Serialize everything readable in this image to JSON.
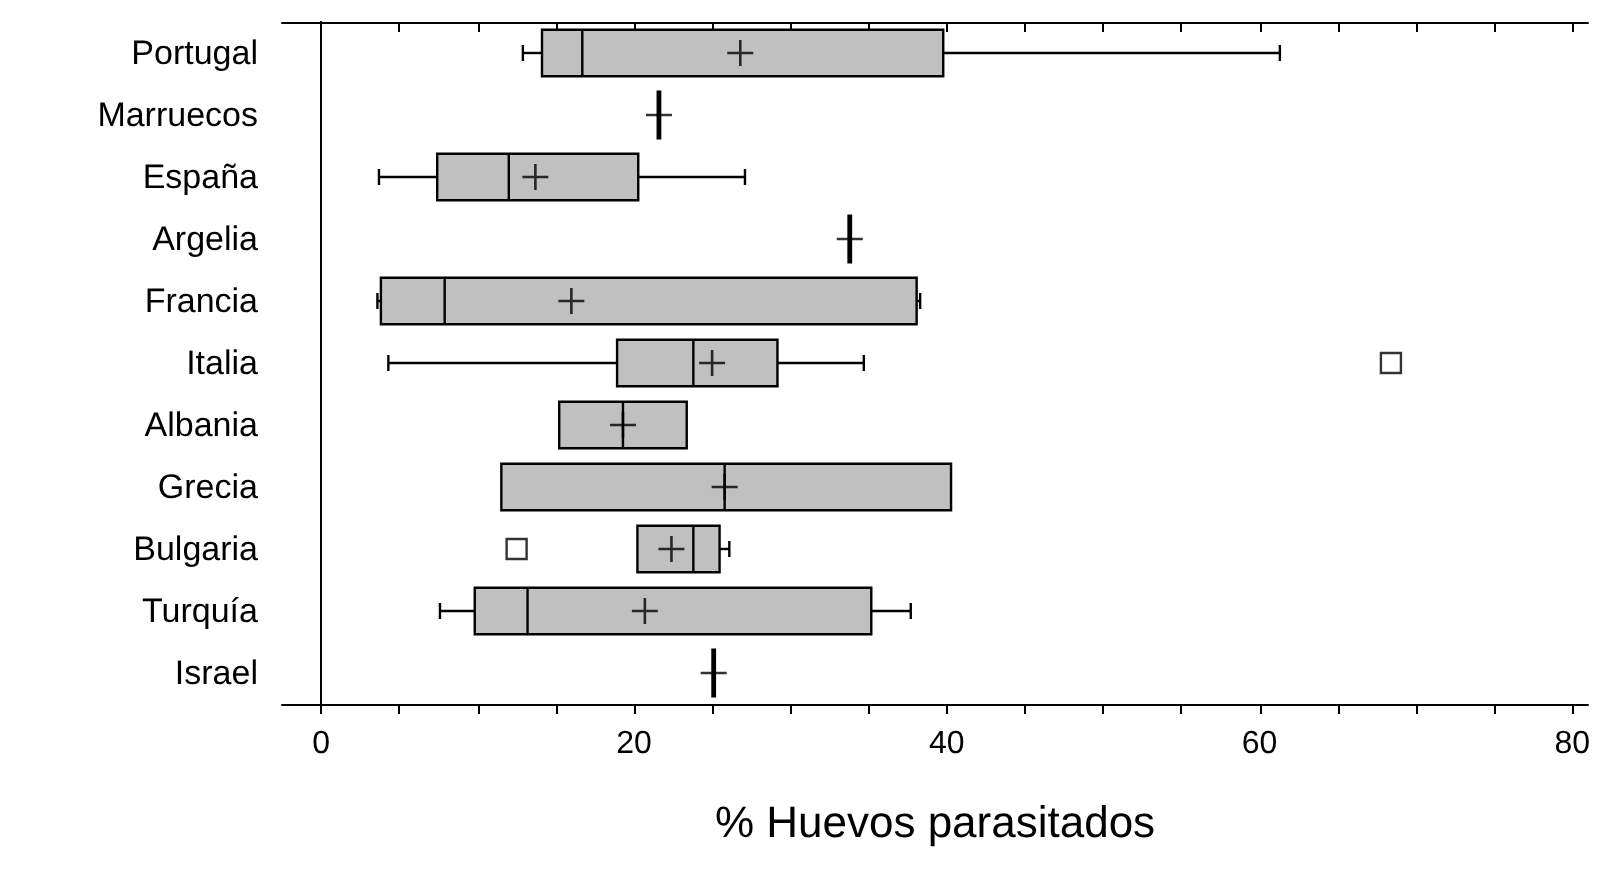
{
  "chart_data": {
    "type": "box",
    "orientation": "horizontal",
    "xlabel": "% Huevos parasitados",
    "color": "#c0c0c0",
    "grid": false,
    "categories": [
      "Portugal",
      "Marruecos",
      "España",
      "Argelia",
      "Francia",
      "Italia",
      "Albania",
      "Grecia",
      "Bulgaria",
      "Turquía",
      "Israel"
    ],
    "boxes": [
      {
        "low": 12.9,
        "q1": 14.2,
        "median": 16.7,
        "q3": 39.7,
        "high": 61.3,
        "mean": 26.8
      },
      {
        "low": 21.6,
        "q1": 21.6,
        "median": 21.6,
        "q3": 21.6,
        "high": 21.6,
        "mean": 21.6
      },
      {
        "low": 3.7,
        "q1": 7.5,
        "median": 12.0,
        "q3": 20.2,
        "high": 27.1,
        "mean": 13.7
      },
      {
        "low": 33.8,
        "q1": 33.8,
        "median": 33.8,
        "q3": 33.8,
        "high": 33.8,
        "mean": 33.8
      },
      {
        "low": 3.6,
        "q1": 3.9,
        "median": 7.9,
        "q3": 38.0,
        "high": 38.3,
        "mean": 16.0
      },
      {
        "low": 4.3,
        "q1": 19.0,
        "median": 23.8,
        "q3": 29.1,
        "high": 34.7,
        "mean": 25.0,
        "outliers": [
          68.4
        ]
      },
      {
        "low": 15.3,
        "q1": 15.3,
        "median": 19.3,
        "q3": 23.3,
        "high": 23.3,
        "mean": 19.3
      },
      {
        "low": 11.6,
        "q1": 11.6,
        "median": 25.8,
        "q3": 40.2,
        "high": 40.2,
        "mean": 25.8
      },
      {
        "low": 20.3,
        "q1": 20.3,
        "median": 23.8,
        "q3": 25.4,
        "high": 26.1,
        "mean": 22.4,
        "outliers": [
          12.5
        ]
      },
      {
        "low": 7.6,
        "q1": 9.9,
        "median": 13.2,
        "q3": 35.1,
        "high": 37.7,
        "mean": 20.7
      },
      {
        "low": 25.1,
        "q1": 25.1,
        "median": 25.1,
        "q3": 25.1,
        "high": 25.1,
        "mean": 25.1
      }
    ],
    "xlim": [
      -2.5,
      81
    ],
    "xticks": [
      0,
      {
        "value": 5,
        "label": null
      },
      {
        "value": 10,
        "label": null
      },
      {
        "value": 15,
        "label": null
      },
      20,
      {
        "value": 25,
        "label": null
      },
      {
        "value": 30,
        "label": null
      },
      {
        "value": 35,
        "label": null
      },
      40,
      {
        "value": 45,
        "label": null
      },
      {
        "value": 50,
        "label": null
      },
      {
        "value": 55,
        "label": null
      },
      60,
      {
        "value": 65,
        "label": null
      },
      {
        "value": 70,
        "label": null
      },
      {
        "value": 75,
        "label": null
      },
      80
    ]
  }
}
